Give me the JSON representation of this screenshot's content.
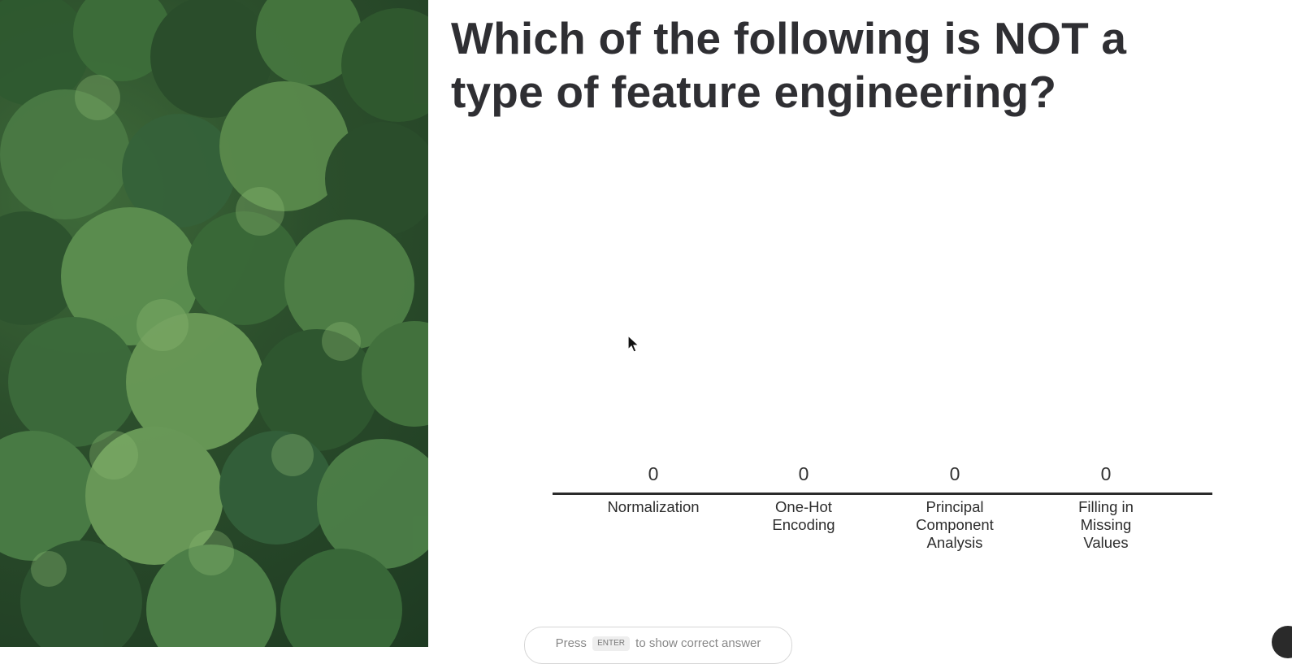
{
  "question": "Which of the following is NOT a type of feature engineering?",
  "chart_data": {
    "type": "bar",
    "categories": [
      "Normalization",
      "One-Hot Encoding",
      "Principal Component Analysis",
      "Filling in Missing Values"
    ],
    "values": [
      0,
      0,
      0,
      0
    ]
  },
  "options": [
    {
      "count": "0",
      "label": "Normalization"
    },
    {
      "count": "0",
      "label": "One-Hot Encoding"
    },
    {
      "count": "0",
      "label": "Principal Component Analysis"
    },
    {
      "count": "0",
      "label": "Filling in Missing Values"
    }
  ],
  "hint": {
    "before": "Press",
    "key": "ENTER",
    "after": "to show correct answer"
  },
  "icons": {
    "background_image": "forest-canopy-image",
    "cursor": "mouse-cursor-icon"
  }
}
